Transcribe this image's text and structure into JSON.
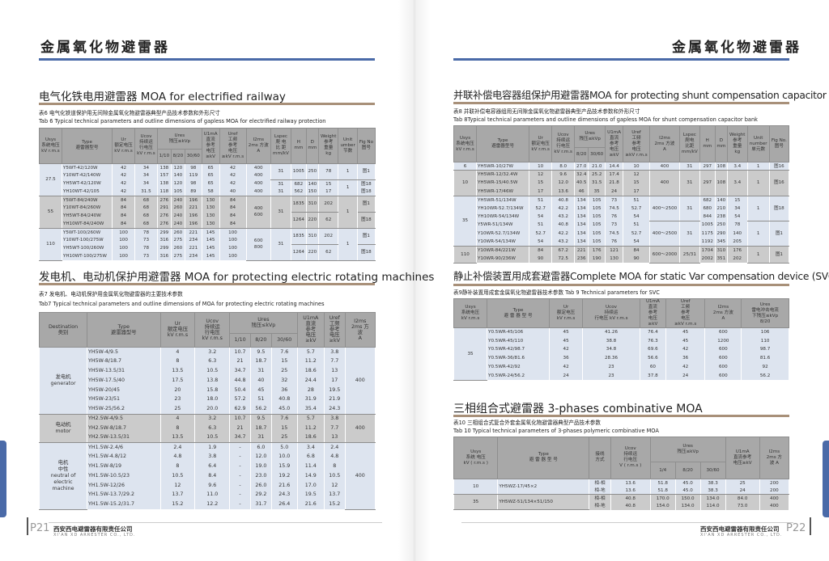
{
  "header": {
    "title_left": "金属氧化物避雷器",
    "title_right": "金属氧化物避雷器",
    "accent_color": "#4a6aa8",
    "bar_color": "#a89079"
  },
  "left_page": {
    "section1_title": "电气化铁电用避雷器 MOA for electrified railway",
    "table6": {
      "caption_cn": "表6 电气化铁道保护用无间隙金属氧化物避雷器典型产品技术参数和外形尺寸",
      "caption_en": "Tab 6 Typical technical parameters and outline dimensions of gapless MOA for electrified railway protection",
      "columns": [
        "Usys\n系统电压\nkV r.m.s",
        "Type\n避雷器型号",
        "Ur\n额定电压\nkV r.m.s",
        "Ucov\n持续运\n行电压\nkV r.m.s",
        {
          "label": "Ures\n残压≤kVp",
          "sub": [
            "1/10",
            "8/20",
            "30/60"
          ]
        },
        "U1mA\n直流\n参考\n电压\n≥kV",
        "Uref\n工频\n参考\n电压\n≥kV r.m.s",
        "I2ms\n2ms 方波\nA",
        "Lspec\n爬 电\n比 距\nmm/kV",
        "H\nmm",
        "D\nmm",
        "Weight\n参考\n重量\nkg",
        "Unit\number\n节数",
        "Fig No\n图号"
      ],
      "rows": [
        [
          "27.5",
          "Y5WT-42/120W",
          "42",
          "34",
          "138",
          "120",
          "98",
          "65",
          "42",
          "400",
          "31",
          "1005",
          "250",
          "78",
          "1",
          "图1"
        ],
        [
          null,
          "Y10WT-42/140W",
          "42",
          "34",
          "157",
          "140",
          "119",
          "65",
          "42",
          "400",
          null,
          null,
          null,
          null,
          null,
          null
        ],
        [
          null,
          "YH5WT-42/120W",
          "42",
          "34",
          "138",
          "120",
          "98",
          "65",
          "42",
          "400",
          "31",
          "682",
          "140",
          "15",
          "1",
          "图18"
        ],
        [
          null,
          "YH10WT-42/105",
          "42",
          "31.5",
          "118",
          "105",
          "89",
          "58",
          "40",
          "400",
          "31",
          "562",
          "150",
          "17",
          null,
          "图18"
        ],
        [
          "55",
          "Y5WT-84/240W",
          "84",
          "68",
          "276",
          "240",
          "196",
          "130",
          "84",
          "400\n600",
          "31",
          "1835",
          "310",
          "202",
          "1",
          "图1"
        ],
        [
          null,
          "Y10WT-84/260W",
          "84",
          "68",
          "291",
          "260",
          "221",
          "130",
          "84",
          null,
          null,
          null,
          null,
          null,
          null,
          null
        ],
        [
          null,
          "YH5WT-84/240W",
          "84",
          "68",
          "276",
          "240",
          "196",
          "130",
          "84",
          null,
          null,
          "1264",
          "220",
          "62",
          null,
          "图18"
        ],
        [
          null,
          "YH10WT-84/240W",
          "84",
          "68",
          "276",
          "240",
          "196",
          "130",
          "84",
          null,
          null,
          null,
          null,
          null,
          null,
          null
        ],
        [
          "110",
          "Y5WT-100/260W",
          "100",
          "78",
          "299",
          "260",
          "221",
          "145",
          "100",
          "600\n800",
          "31",
          "1835",
          "310",
          "202",
          "1",
          "图1"
        ],
        [
          null,
          "Y10WT-100/275W",
          "100",
          "73",
          "316",
          "275",
          "234",
          "145",
          "100",
          null,
          null,
          null,
          null,
          null,
          null,
          null
        ],
        [
          null,
          "YH5WT-100/260W",
          "100",
          "78",
          "299",
          "260",
          "221",
          "145",
          "100",
          null,
          null,
          "1264",
          "220",
          "62",
          null,
          "图18"
        ],
        [
          null,
          "YH10WT-100/275W",
          "100",
          "73",
          "316",
          "275",
          "234",
          "145",
          "100",
          null,
          null,
          null,
          null,
          null,
          null,
          null
        ]
      ]
    },
    "section2_title": "发电机、电动机保护用避雷器  MOA for protecting electric rotating machines",
    "table7": {
      "caption_cn": "表7 发电机、电动机保护用金属氧化物避雷器的主要技术参数",
      "caption_en": "Tab7 Typical technical parameters and outline dimensions of MOA for protecting  electric rotating machines",
      "columns": [
        "Destination\n类别",
        "Type\n避雷器型号",
        "Ur\n额定电压\nkV r.m.s",
        "Ucov\n持续运\n行电压\nkV r.m.s",
        {
          "label": "Ures\n残压≤kVp",
          "sub": [
            "1/10",
            "8/20",
            "30/60"
          ]
        },
        "U1mA\n直流\n参考\n电压\n≥kV",
        "Uref\n工频\n参考\n电压\n≥kV",
        "I2ms\n2ms 方\n波\nA"
      ],
      "rows": [
        [
          "发电机\ngenerator",
          "YH5W-4/9.5",
          "4",
          "3.2",
          "10.7",
          "9.5",
          "7.6",
          "5.7",
          "3.8",
          "400"
        ],
        [
          null,
          "YH5W-8/18.7",
          "8",
          "6.3",
          "21",
          "18.7",
          "15",
          "11.2",
          "7.7",
          null
        ],
        [
          null,
          "YH5W-13.5/31",
          "13.5",
          "10.5",
          "34.7",
          "31",
          "25",
          "18.6",
          "13",
          null
        ],
        [
          null,
          "YH5W-17.5/40",
          "17.5",
          "13.8",
          "44.8",
          "40",
          "32",
          "24.4",
          "17",
          null
        ],
        [
          null,
          "YH5W-20/45",
          "20",
          "15.8",
          "50.4",
          "45",
          "36",
          "28",
          "19.5",
          null
        ],
        [
          null,
          "YH5W-23/51",
          "23",
          "18.0",
          "57.2",
          "51",
          "40.8",
          "31.9",
          "21.9",
          null
        ],
        [
          null,
          "YH5W-25/56.2",
          "25",
          "20.0",
          "62.9",
          "56.2",
          "45.0",
          "35.4",
          "24.3",
          null
        ],
        [
          "电动机\nmotor",
          "YH2.5W-4/9.5",
          "4",
          "3.2",
          "10.7",
          "9.5",
          "7.6",
          "5.7",
          "3.8",
          "400"
        ],
        [
          null,
          "YH2.5W-8/18.7",
          "8",
          "6.3",
          "21",
          "18.7",
          "15",
          "11.2",
          "7.7",
          null
        ],
        [
          null,
          "YH2.5W-13.5/31",
          "13.5",
          "10.5",
          "34.7",
          "31",
          "25",
          "18.6",
          "13",
          null
        ],
        [
          "电机\n中性\nneutral of\nelectric\nmachine",
          "YH1.5W-2.4/6",
          "2.4",
          "1.9",
          "-",
          "6.0",
          "5.0",
          "3.4",
          "2.4",
          "400"
        ],
        [
          null,
          "YH1.5W-4.8/12",
          "4.8",
          "3.8",
          "-",
          "12.0",
          "10.0",
          "6.8",
          "4.8",
          null
        ],
        [
          null,
          "YH1.5W-8/19",
          "8",
          "6.4",
          "-",
          "19.0",
          "15.9",
          "11.4",
          "8",
          null
        ],
        [
          null,
          "YH1.5W-10.5/23",
          "10.5",
          "8.4",
          "-",
          "23.0",
          "19.2",
          "14.9",
          "10.5",
          null
        ],
        [
          null,
          "YH1.5W-12/26",
          "12",
          "9.6",
          "-",
          "26.0",
          "21.6",
          "17.0",
          "12",
          null
        ],
        [
          null,
          "YH1.5W-13.7/29.2",
          "13.7",
          "11.0",
          "-",
          "29.2",
          "24.3",
          "19.5",
          "13.7",
          null
        ],
        [
          null,
          "YH1.5W-15.2/31.7",
          "15.2",
          "12.2",
          "-",
          "31.7",
          "26.4",
          "21.6",
          "15.2",
          null
        ]
      ]
    },
    "footer": {
      "page": "P21",
      "company_cn": "西安西电避雷器有限责任公司",
      "company_en": "XI'AN XD ARRESTER CO., LTD."
    }
  },
  "right_page": {
    "section1_title": "并联补偿电容器组保护用避雷器MOA for protecting shunt compensation capacitor bank",
    "table8": {
      "caption_cn": "表8 并联补偿电容器组用无间隙金属氧化物避雷器典型产品技术参数和外形尺寸",
      "caption_en": "Tab 8Typical technical parameters and outline dimensions of gapless MOA for shunt compensation capacitor bank",
      "columns": [
        "Usys\n系统电压\nkV r.m.s",
        "Type\n避雷器型号",
        "Ur\n额定电压\nkV r.m.s",
        "Ucov\n持续运\n行电压\nkV r.m.s",
        {
          "label": "Ures\n残压≤kVp",
          "sub": [
            "8/20",
            "30/60"
          ]
        },
        "U1mA\n直流\n参考\n电压\n≥kV",
        "Uref\n工频\n参考\n电压\n≥kV r.m.s",
        "I2ms\n2ms 方波\nA",
        "Lspec\n爬电\n比距\nmm/kV",
        "H\nmm",
        "D\nmm",
        "Weight\n参考\n重量\nkg",
        "Unit\nnumber\n单元数",
        "Fig No.\n图号"
      ],
      "rows": [
        [
          "6",
          "YH5WR-10/27W",
          "10",
          "8.0",
          "27.0",
          "21.0",
          "14.4",
          "10",
          "400",
          "31",
          "297",
          "108",
          "3.4",
          "1",
          "图16"
        ],
        [
          "10",
          "YH5WR-12/32.4W",
          "12",
          "9.6",
          "32.4",
          "25.2",
          "17.4",
          "12",
          "400",
          "31",
          "297",
          "108",
          "3.4",
          "1",
          "图16"
        ],
        [
          null,
          "YH5WR-15/40.5W",
          "15",
          "12.0",
          "40.5",
          "31.5",
          "21.8",
          "15",
          null,
          null,
          null,
          null,
          null,
          null,
          null
        ],
        [
          null,
          "YH5WR-17/46W",
          "17",
          "13.6",
          "46",
          "35",
          "24",
          "17",
          null,
          null,
          null,
          null,
          null,
          null,
          null
        ],
        [
          "35",
          "YH5WR-51/134W",
          "51",
          "40.8",
          "134",
          "105",
          "73",
          "51",
          "400～2500",
          "31",
          "682",
          "140",
          "15",
          "1",
          "图18"
        ],
        [
          null,
          "YH10WR-52.7/134W",
          "52.7",
          "42.2",
          "134",
          "105",
          "74.5",
          "52.7",
          null,
          null,
          "680",
          "210",
          "34",
          null,
          null
        ],
        [
          null,
          "YH10WR-54/134W",
          "54",
          "43.2",
          "134",
          "105",
          "76",
          "54",
          null,
          null,
          "844",
          "238",
          "54",
          null,
          null
        ],
        [
          null,
          "Y5WR-51/134W",
          "51",
          "40.8",
          "134",
          "105",
          "73",
          "51",
          "400～2500",
          "31",
          "1005",
          "250",
          "78",
          "1",
          "图1"
        ],
        [
          null,
          "Y10WR-52.7/134W",
          "52.7",
          "42.2",
          "134",
          "105",
          "74.5",
          "52.7",
          null,
          null,
          "1175",
          "290",
          "140",
          null,
          null
        ],
        [
          null,
          "Y10WR-54/134W",
          "54",
          "43.2",
          "134",
          "105",
          "76",
          "54",
          null,
          null,
          "1192",
          "345",
          "205",
          null,
          null
        ],
        [
          "110",
          "Y10WR-84/221W",
          "84",
          "67.2",
          "221",
          "176",
          "121",
          "84",
          "600～2000",
          "25/31",
          "1704",
          "310",
          "176",
          "1",
          "图1"
        ],
        [
          null,
          "Y10WR-90/236W",
          "90",
          "72.5",
          "236",
          "190",
          "130",
          "90",
          null,
          null,
          "2002",
          "351",
          "202",
          null,
          null
        ]
      ]
    },
    "section2_title": "静止补偿装置用成套避雷器Complete MOA for static  Var compensation device (SVC)",
    "table9": {
      "caption": "表9静补装置用成套金属氧化物避雷器技术参数    Tab 9 Technical parameters for SVC",
      "columns": [
        "Usys\n系统电压\nkV r.m.s",
        "Type\n避 雷 器 型 号",
        "Ur\n额定电压\nkV r.m.s",
        "Ucov\n持续运\n行电压 kV r.m.s",
        "U1mA\n直流\n参考\n电压\n≥kV",
        "Uref\n工频\n参考\n电压\n≥kV r.m.s",
        "I2ms\n2ms 方波\nA",
        "Ures\n雷电冲击电流\n下残压≤kVp\n8/20"
      ],
      "rows": [
        [
          "35",
          "Y0.5WR-45/106",
          "45",
          "41.26",
          "76.4",
          "45",
          "600",
          "106"
        ],
        [
          null,
          "Y0.5WR-45/110",
          "45",
          "38.8",
          "76.3",
          "45",
          "1200",
          "110"
        ],
        [
          null,
          "Y0.5WR-42/98.7",
          "42",
          "34.8",
          "69.6",
          "42",
          "600",
          "98.7"
        ],
        [
          null,
          "Y0.5WR-36/81.6",
          "36",
          "28.36",
          "56.6",
          "36",
          "600",
          "81.6"
        ],
        [
          null,
          "Y0.5WR-42/92",
          "42",
          "23",
          "60",
          "42",
          "600",
          "92"
        ],
        [
          null,
          "Y0.5WR-24/56.2",
          "24",
          "23",
          "37.8",
          "24",
          "600",
          "56.2"
        ]
      ]
    },
    "section3_title": "三相组合式避雷器 3-phases combinative MOA",
    "table10": {
      "caption_cn": "表10 三相组合式复合外套金属氧化物避雷器典型产品技术参数",
      "caption_en": "Tab 10 Typical technical parameters of 3-phases polymeric combinative MOA",
      "columns": [
        "Usys\n系统 电压\nkV ( r.m.s )",
        "Type\n避 雷 器 型 号",
        "接线\n方式",
        "Ucov\n持续运\n行电压\nV ( r.m.s )",
        {
          "label": "Ures\n残压≤kVp",
          "sub": [
            "1/4",
            "8/20",
            "30/60"
          ]
        },
        "U1mA\n直流参考\n电压≥kV",
        "I2ms\n2ms 方\n波 A"
      ],
      "rows": [
        [
          "10",
          "YH5WZ-17/45×2",
          "相-相",
          "13.6",
          "51.8",
          "45.0",
          "38.3",
          "25",
          "200"
        ],
        [
          null,
          null,
          "相-地",
          "13.6",
          "51.8",
          "45.0",
          "38.3",
          "24",
          "200"
        ],
        [
          "35",
          "YH5WZ-51/134×51/150",
          "相-相",
          "40.8",
          "170.0",
          "150.0",
          "134.0",
          "84.0",
          "400"
        ],
        [
          null,
          null,
          "相-地",
          "40.8",
          "154.0",
          "134.0",
          "114.0",
          "73.0",
          "400"
        ]
      ]
    },
    "footer": {
      "page": "P22",
      "company_cn": "西安西电避雷器有限责任公司",
      "company_en": "XI'AN XD ARRESTER CO., LTD."
    }
  }
}
